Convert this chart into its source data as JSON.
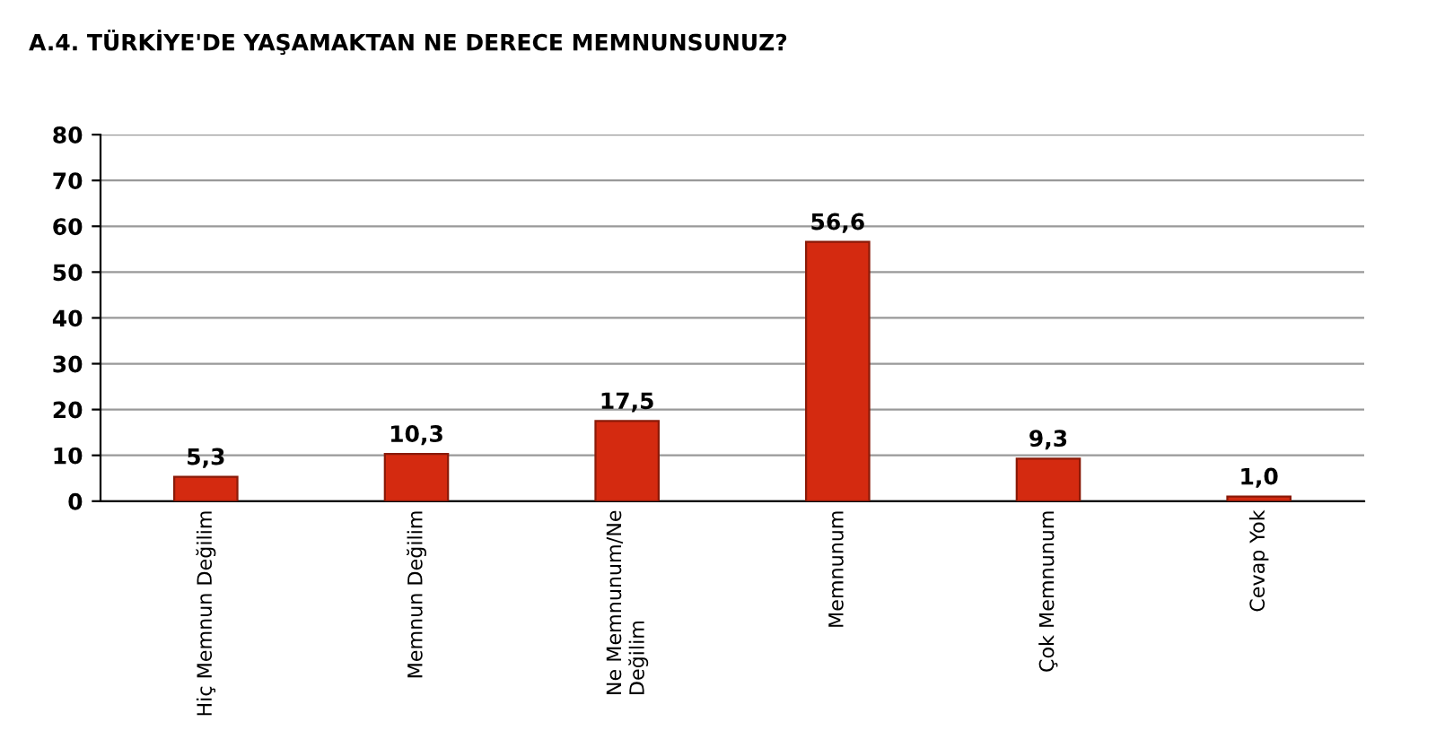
{
  "chart_data": {
    "type": "bar",
    "title": "A.4. TÜRKİYE'DE YAŞAMAKTAN NE DERECE MEMNUNSUNUZ?",
    "categories": [
      "Hiç Memnun Değilim",
      "Memnun Değilim",
      "Ne Memnunum/Ne Değilim",
      "Memnunum",
      "Çok Memnunum",
      "Cevap Yok"
    ],
    "values": [
      5.3,
      10.3,
      17.5,
      56.6,
      9.3,
      1.0
    ],
    "value_labels": [
      "5,3",
      "10,3",
      "17,5",
      "56,6",
      "9,3",
      "1,0"
    ],
    "color": "#d42a10",
    "ylim": [
      0,
      80
    ],
    "yticks": [
      0,
      10,
      20,
      30,
      40,
      50,
      60,
      70,
      80
    ],
    "grid": "y"
  }
}
